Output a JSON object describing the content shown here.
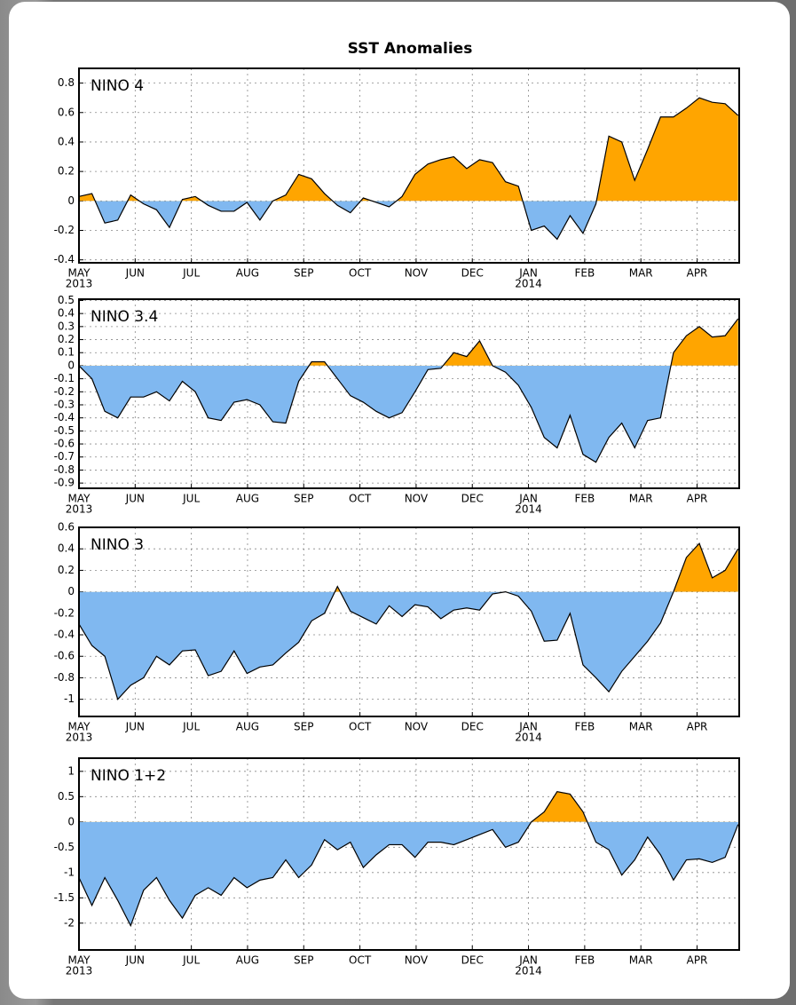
{
  "title": "SST Anomalies",
  "chart_data": [
    {
      "type": "area",
      "label": "NINO 4",
      "x": [
        0,
        0.23,
        0.46,
        0.69,
        0.92,
        1.15,
        1.38,
        1.61,
        1.84,
        2.07,
        2.3,
        2.53,
        2.76,
        2.99,
        3.22,
        3.45,
        3.68,
        3.91,
        4.14,
        4.37,
        4.6,
        4.83,
        5.06,
        5.29,
        5.52,
        5.75,
        5.98,
        6.21,
        6.44,
        6.67,
        6.9,
        7.13,
        7.36,
        7.59,
        7.82,
        8.05,
        8.28,
        8.51,
        8.74,
        8.97,
        9.2,
        9.43,
        9.66,
        9.89,
        10.12,
        10.35,
        10.58,
        10.81,
        11.04,
        11.27,
        11.5,
        11.73
      ],
      "values": [
        0.03,
        0.05,
        -0.15,
        -0.13,
        0.04,
        -0.02,
        -0.06,
        -0.18,
        0.01,
        0.03,
        -0.03,
        -0.07,
        -0.07,
        -0.01,
        -0.13,
        0.0,
        0.04,
        0.18,
        0.15,
        0.05,
        -0.03,
        -0.08,
        0.02,
        -0.01,
        -0.04,
        0.03,
        0.18,
        0.25,
        0.28,
        0.3,
        0.22,
        0.28,
        0.26,
        0.13,
        0.1,
        -0.2,
        -0.17,
        -0.26,
        -0.1,
        -0.22,
        -0.02,
        0.44,
        0.4,
        0.14,
        0.35,
        0.57,
        0.57,
        0.63,
        0.7,
        0.67,
        0.66,
        0.58
      ],
      "xlim": [
        0,
        11.75
      ],
      "xticks": [
        {
          "value": 0,
          "label": "MAY"
        },
        {
          "value": 1,
          "label": "JUN"
        },
        {
          "value": 2,
          "label": "JUL"
        },
        {
          "value": 3,
          "label": "AUG"
        },
        {
          "value": 4,
          "label": "SEP"
        },
        {
          "value": 5,
          "label": "OCT"
        },
        {
          "value": 6,
          "label": "NOV"
        },
        {
          "value": 7,
          "label": "DEC"
        },
        {
          "value": 8,
          "label": "JAN"
        },
        {
          "value": 9,
          "label": "FEB"
        },
        {
          "value": 10,
          "label": "MAR"
        },
        {
          "value": 11,
          "label": "APR"
        }
      ],
      "xtick_years": [
        {
          "value": 0,
          "label": "2013"
        },
        {
          "value": 8,
          "label": "2014"
        }
      ],
      "ylim": [
        -0.42,
        0.9
      ],
      "yticks": [
        0.8,
        0.6,
        0.4,
        0.2,
        0,
        -0.2,
        -0.4
      ],
      "grid": true,
      "colors": {
        "positive": "#ffa500",
        "negative": "#80b8f0",
        "line": "#000000"
      }
    },
    {
      "type": "area",
      "label": "NINO 3.4",
      "x": [
        0,
        0.23,
        0.46,
        0.69,
        0.92,
        1.15,
        1.38,
        1.61,
        1.84,
        2.07,
        2.3,
        2.53,
        2.76,
        2.99,
        3.22,
        3.45,
        3.68,
        3.91,
        4.14,
        4.37,
        4.6,
        4.83,
        5.06,
        5.29,
        5.52,
        5.75,
        5.98,
        6.21,
        6.44,
        6.67,
        6.9,
        7.13,
        7.36,
        7.59,
        7.82,
        8.05,
        8.28,
        8.51,
        8.74,
        8.97,
        9.2,
        9.43,
        9.66,
        9.89,
        10.12,
        10.35,
        10.58,
        10.81,
        11.04,
        11.27,
        11.5,
        11.73
      ],
      "values": [
        0.0,
        -0.1,
        -0.35,
        -0.4,
        -0.24,
        -0.24,
        -0.2,
        -0.27,
        -0.12,
        -0.2,
        -0.4,
        -0.42,
        -0.28,
        -0.26,
        -0.3,
        -0.43,
        -0.44,
        -0.12,
        0.03,
        0.03,
        -0.1,
        -0.23,
        -0.28,
        -0.35,
        -0.4,
        -0.36,
        -0.2,
        -0.03,
        -0.02,
        0.1,
        0.07,
        0.19,
        0.0,
        -0.05,
        -0.15,
        -0.32,
        -0.55,
        -0.63,
        -0.38,
        -0.68,
        -0.74,
        -0.55,
        -0.44,
        -0.63,
        -0.42,
        -0.4,
        0.1,
        0.23,
        0.3,
        0.22,
        0.23,
        0.36
      ],
      "xlim": [
        0,
        11.75
      ],
      "xticks": [
        {
          "value": 0,
          "label": "MAY"
        },
        {
          "value": 1,
          "label": "JUN"
        },
        {
          "value": 2,
          "label": "JUL"
        },
        {
          "value": 3,
          "label": "AUG"
        },
        {
          "value": 4,
          "label": "SEP"
        },
        {
          "value": 5,
          "label": "OCT"
        },
        {
          "value": 6,
          "label": "NOV"
        },
        {
          "value": 7,
          "label": "DEC"
        },
        {
          "value": 8,
          "label": "JAN"
        },
        {
          "value": 9,
          "label": "FEB"
        },
        {
          "value": 10,
          "label": "MAR"
        },
        {
          "value": 11,
          "label": "APR"
        }
      ],
      "xtick_years": [
        {
          "value": 0,
          "label": "2013"
        },
        {
          "value": 8,
          "label": "2014"
        }
      ],
      "ylim": [
        -0.94,
        0.51
      ],
      "yticks": [
        0.5,
        0.4,
        0.3,
        0.2,
        0.1,
        0,
        -0.1,
        -0.2,
        -0.3,
        -0.4,
        -0.5,
        -0.6,
        -0.7,
        -0.8,
        -0.9
      ],
      "grid": true,
      "colors": {
        "positive": "#ffa500",
        "negative": "#80b8f0",
        "line": "#000000"
      }
    },
    {
      "type": "area",
      "label": "NINO 3",
      "x": [
        0,
        0.23,
        0.46,
        0.69,
        0.92,
        1.15,
        1.38,
        1.61,
        1.84,
        2.07,
        2.3,
        2.53,
        2.76,
        2.99,
        3.22,
        3.45,
        3.68,
        3.91,
        4.14,
        4.37,
        4.6,
        4.83,
        5.06,
        5.29,
        5.52,
        5.75,
        5.98,
        6.21,
        6.44,
        6.67,
        6.9,
        7.13,
        7.36,
        7.59,
        7.82,
        8.05,
        8.28,
        8.51,
        8.74,
        8.97,
        9.2,
        9.43,
        9.66,
        9.89,
        10.12,
        10.35,
        10.58,
        10.81,
        11.04,
        11.27,
        11.5,
        11.73
      ],
      "values": [
        -0.3,
        -0.5,
        -0.6,
        -1.0,
        -0.87,
        -0.8,
        -0.6,
        -0.68,
        -0.55,
        -0.54,
        -0.78,
        -0.74,
        -0.55,
        -0.76,
        -0.7,
        -0.68,
        -0.57,
        -0.47,
        -0.27,
        -0.2,
        0.05,
        -0.18,
        -0.24,
        -0.3,
        -0.13,
        -0.23,
        -0.12,
        -0.14,
        -0.25,
        -0.17,
        -0.15,
        -0.17,
        -0.02,
        0.0,
        -0.04,
        -0.18,
        -0.46,
        -0.45,
        -0.2,
        -0.68,
        -0.8,
        -0.93,
        -0.74,
        -0.6,
        -0.46,
        -0.29,
        0.0,
        0.32,
        0.45,
        0.13,
        0.2,
        0.4
      ],
      "xlim": [
        0,
        11.75
      ],
      "xticks": [
        {
          "value": 0,
          "label": "MAY"
        },
        {
          "value": 1,
          "label": "JUN"
        },
        {
          "value": 2,
          "label": "JUL"
        },
        {
          "value": 3,
          "label": "AUG"
        },
        {
          "value": 4,
          "label": "SEP"
        },
        {
          "value": 5,
          "label": "OCT"
        },
        {
          "value": 6,
          "label": "NOV"
        },
        {
          "value": 7,
          "label": "DEC"
        },
        {
          "value": 8,
          "label": "JAN"
        },
        {
          "value": 9,
          "label": "FEB"
        },
        {
          "value": 10,
          "label": "MAR"
        },
        {
          "value": 11,
          "label": "APR"
        }
      ],
      "xtick_years": [
        {
          "value": 0,
          "label": "2013"
        },
        {
          "value": 8,
          "label": "2014"
        }
      ],
      "ylim": [
        -1.16,
        0.6
      ],
      "yticks": [
        0.6,
        0.4,
        0.2,
        0,
        -0.2,
        -0.4,
        -0.6,
        -0.8,
        -1
      ],
      "grid": true,
      "colors": {
        "positive": "#ffa500",
        "negative": "#80b8f0",
        "line": "#000000"
      }
    },
    {
      "type": "area",
      "label": "NINO 1+2",
      "x": [
        0,
        0.23,
        0.46,
        0.69,
        0.92,
        1.15,
        1.38,
        1.61,
        1.84,
        2.07,
        2.3,
        2.53,
        2.76,
        2.99,
        3.22,
        3.45,
        3.68,
        3.91,
        4.14,
        4.37,
        4.6,
        4.83,
        5.06,
        5.29,
        5.52,
        5.75,
        5.98,
        6.21,
        6.44,
        6.67,
        6.9,
        7.13,
        7.36,
        7.59,
        7.82,
        8.05,
        8.28,
        8.51,
        8.74,
        8.97,
        9.2,
        9.43,
        9.66,
        9.89,
        10.12,
        10.35,
        10.58,
        10.81,
        11.04,
        11.27,
        11.5,
        11.73
      ],
      "values": [
        -1.1,
        -1.65,
        -1.1,
        -1.55,
        -2.05,
        -1.35,
        -1.1,
        -1.55,
        -1.9,
        -1.45,
        -1.3,
        -1.45,
        -1.1,
        -1.3,
        -1.15,
        -1.1,
        -0.75,
        -1.1,
        -0.85,
        -0.35,
        -0.55,
        -0.4,
        -0.9,
        -0.65,
        -0.45,
        -0.45,
        -0.7,
        -0.4,
        -0.4,
        -0.45,
        -0.35,
        -0.25,
        -0.15,
        -0.5,
        -0.4,
        0.0,
        0.2,
        0.6,
        0.55,
        0.2,
        -0.4,
        -0.55,
        -1.05,
        -0.75,
        -0.3,
        -0.65,
        -1.15,
        -0.75,
        -0.73,
        -0.8,
        -0.7,
        -0.05
      ],
      "xlim": [
        0,
        11.75
      ],
      "xticks": [
        {
          "value": 0,
          "label": "MAY"
        },
        {
          "value": 1,
          "label": "JUN"
        },
        {
          "value": 2,
          "label": "JUL"
        },
        {
          "value": 3,
          "label": "AUG"
        },
        {
          "value": 4,
          "label": "SEP"
        },
        {
          "value": 5,
          "label": "OCT"
        },
        {
          "value": 6,
          "label": "NOV"
        },
        {
          "value": 7,
          "label": "DEC"
        },
        {
          "value": 8,
          "label": "JAN"
        },
        {
          "value": 9,
          "label": "FEB"
        },
        {
          "value": 10,
          "label": "MAR"
        },
        {
          "value": 11,
          "label": "APR"
        }
      ],
      "xtick_years": [
        {
          "value": 0,
          "label": "2013"
        },
        {
          "value": 8,
          "label": "2014"
        }
      ],
      "ylim": [
        -2.53,
        1.26
      ],
      "yticks": [
        1,
        0.5,
        0,
        -0.5,
        -1,
        -1.5,
        -2
      ],
      "grid": true,
      "colors": {
        "positive": "#ffa500",
        "negative": "#80b8f0",
        "line": "#000000"
      }
    }
  ]
}
